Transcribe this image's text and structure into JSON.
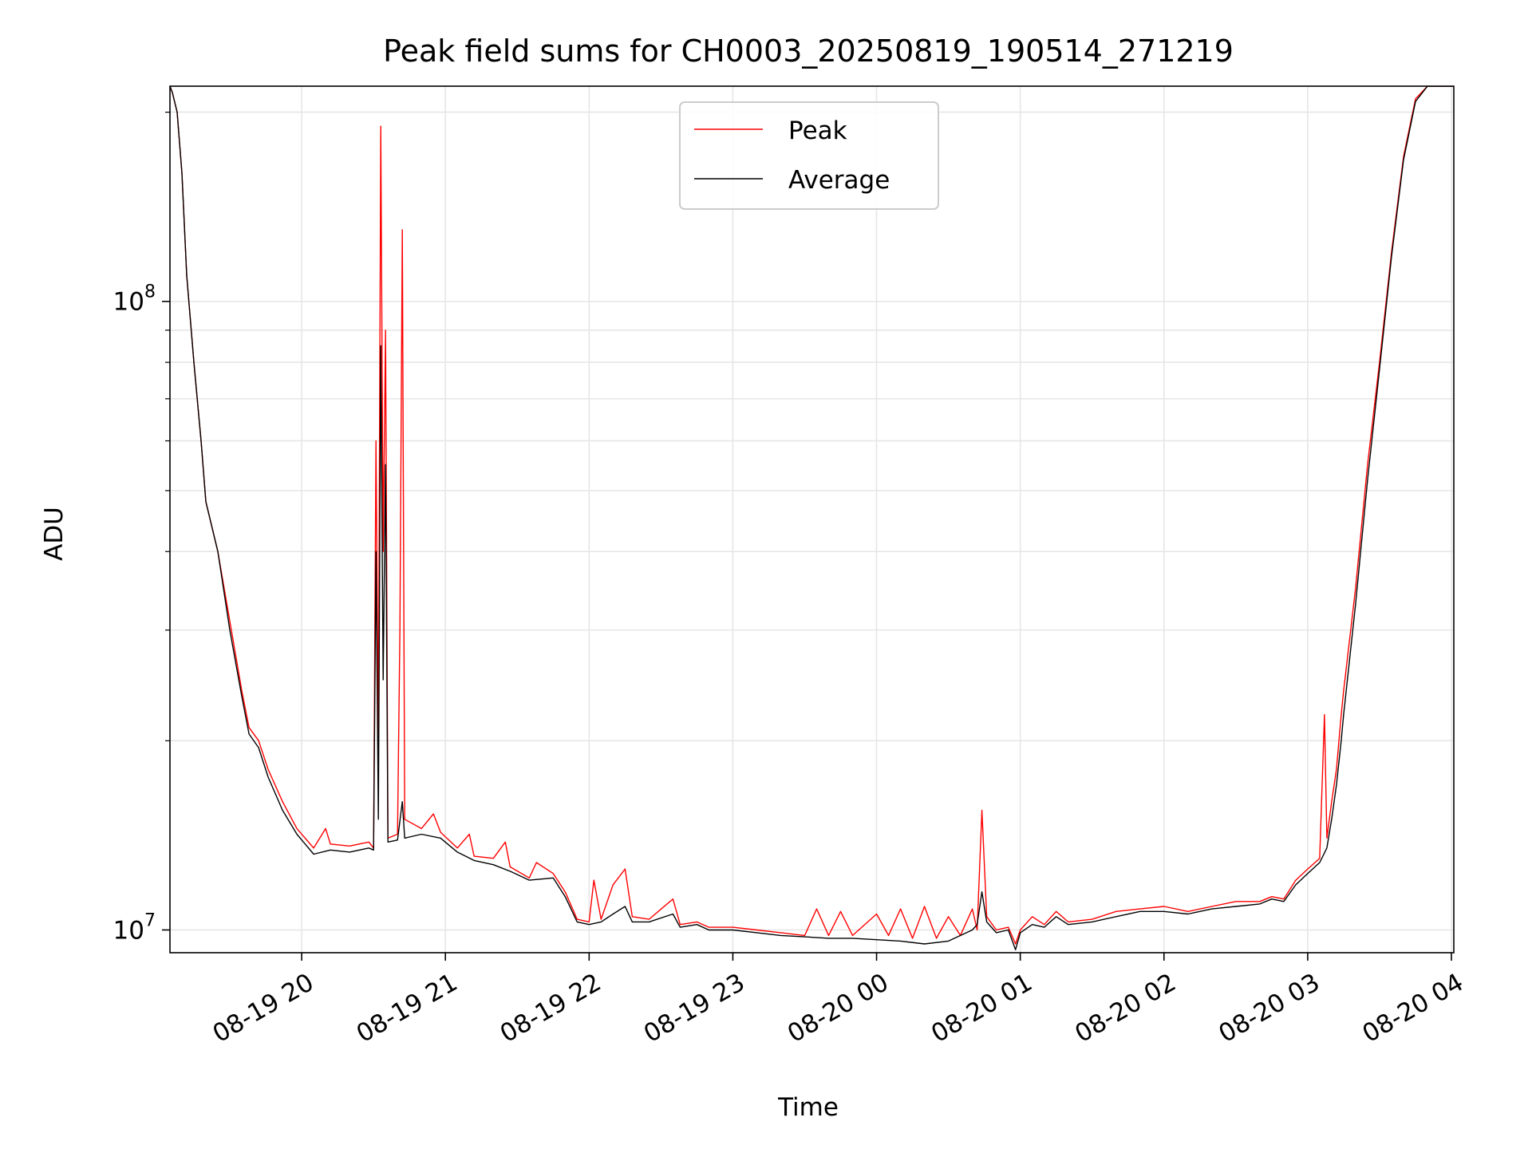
{
  "chart_data": {
    "type": "line",
    "title": "Peak field sums for CH0003_20250819_190514_271219",
    "xlabel": "Time",
    "ylabel": "ADU",
    "yscale": "log",
    "ylim": [
      9200000,
      220000000
    ],
    "xlim": [
      "08-19 19:05",
      "08-20 04:01"
    ],
    "xticks": [
      "08-19 20",
      "08-19 21",
      "08-19 22",
      "08-19 23",
      "08-20 00",
      "08-20 01",
      "08-20 02",
      "08-20 03",
      "08-20 04"
    ],
    "yticks": [
      {
        "value": 10000000,
        "base": "10",
        "exp": "7"
      },
      {
        "value": 100000000,
        "base": "10",
        "exp": "8"
      }
    ],
    "grid": true,
    "legend_position": "top-center",
    "series": [
      {
        "name": "Peak",
        "color": "#ff0000",
        "points": [
          [
            "08-19 19:05",
            220000000
          ],
          [
            "08-19 19:06",
            215000000
          ],
          [
            "08-19 19:08",
            200000000
          ],
          [
            "08-19 19:10",
            160000000
          ],
          [
            "08-19 19:12",
            110000000
          ],
          [
            "08-19 19:15",
            80000000
          ],
          [
            "08-19 19:18",
            60000000
          ],
          [
            "08-19 19:20",
            48000000
          ],
          [
            "08-19 19:25",
            40000000
          ],
          [
            "08-19 19:30",
            31000000
          ],
          [
            "08-19 19:35",
            24000000
          ],
          [
            "08-19 19:38",
            21000000
          ],
          [
            "08-19 19:42",
            20000000
          ],
          [
            "08-19 19:46",
            18000000
          ],
          [
            "08-19 19:52",
            16000000
          ],
          [
            "08-19 19:58",
            14500000
          ],
          [
            "08-19 20:05",
            13500000
          ],
          [
            "08-19 20:10",
            14500000
          ],
          [
            "08-19 20:12",
            13700000
          ],
          [
            "08-19 20:20",
            13600000
          ],
          [
            "08-19 20:28",
            13800000
          ],
          [
            "08-19 20:30",
            13500000
          ],
          [
            "08-19 20:31",
            60000000
          ],
          [
            "08-19 20:32",
            20000000
          ],
          [
            "08-19 20:33",
            190000000
          ],
          [
            "08-19 20:34",
            40000000
          ],
          [
            "08-19 20:35",
            90000000
          ],
          [
            "08-19 20:36",
            14000000
          ],
          [
            "08-19 20:40",
            14200000
          ],
          [
            "08-19 20:41",
            30000000
          ],
          [
            "08-19 20:42",
            130000000
          ],
          [
            "08-19 20:43",
            15000000
          ],
          [
            "08-19 20:50",
            14500000
          ],
          [
            "08-19 20:55",
            15300000
          ],
          [
            "08-19 20:58",
            14300000
          ],
          [
            "08-19 21:05",
            13500000
          ],
          [
            "08-19 21:10",
            14200000
          ],
          [
            "08-19 21:12",
            13100000
          ],
          [
            "08-19 21:20",
            13000000
          ],
          [
            "08-19 21:25",
            13800000
          ],
          [
            "08-19 21:27",
            12600000
          ],
          [
            "08-19 21:35",
            12100000
          ],
          [
            "08-19 21:38",
            12800000
          ],
          [
            "08-19 21:45",
            12300000
          ],
          [
            "08-19 21:50",
            11500000
          ],
          [
            "08-19 21:55",
            10400000
          ],
          [
            "08-19 22:00",
            10300000
          ],
          [
            "08-19 22:02",
            12000000
          ],
          [
            "08-19 22:05",
            10400000
          ],
          [
            "08-19 22:10",
            11800000
          ],
          [
            "08-19 22:15",
            12500000
          ],
          [
            "08-19 22:18",
            10500000
          ],
          [
            "08-19 22:25",
            10400000
          ],
          [
            "08-19 22:35",
            11200000
          ],
          [
            "08-19 22:38",
            10200000
          ],
          [
            "08-19 22:45",
            10300000
          ],
          [
            "08-19 22:50",
            10100000
          ],
          [
            "08-19 23:00",
            10100000
          ],
          [
            "08-19 23:10",
            10000000
          ],
          [
            "08-19 23:20",
            9900000
          ],
          [
            "08-19 23:30",
            9800000
          ],
          [
            "08-19 23:35",
            10800000
          ],
          [
            "08-19 23:40",
            9800000
          ],
          [
            "08-19 23:45",
            10700000
          ],
          [
            "08-19 23:50",
            9800000
          ],
          [
            "08-20 00:00",
            10600000
          ],
          [
            "08-20 00:05",
            9800000
          ],
          [
            "08-20 00:10",
            10800000
          ],
          [
            "08-20 00:15",
            9700000
          ],
          [
            "08-20 00:20",
            10900000
          ],
          [
            "08-20 00:25",
            9700000
          ],
          [
            "08-20 00:30",
            10500000
          ],
          [
            "08-20 00:35",
            9800000
          ],
          [
            "08-20 00:40",
            10800000
          ],
          [
            "08-20 00:42",
            10000000
          ],
          [
            "08-20 00:44",
            15500000
          ],
          [
            "08-20 00:46",
            10500000
          ],
          [
            "08-20 00:50",
            10000000
          ],
          [
            "08-20 00:55",
            10100000
          ],
          [
            "08-20 00:58",
            9500000
          ],
          [
            "08-20 01:00",
            10000000
          ],
          [
            "08-20 01:05",
            10500000
          ],
          [
            "08-20 01:10",
            10200000
          ],
          [
            "08-20 01:15",
            10700000
          ],
          [
            "08-20 01:20",
            10300000
          ],
          [
            "08-20 01:30",
            10400000
          ],
          [
            "08-20 01:40",
            10700000
          ],
          [
            "08-20 01:50",
            10800000
          ],
          [
            "08-20 02:00",
            10900000
          ],
          [
            "08-20 02:10",
            10700000
          ],
          [
            "08-20 02:20",
            10900000
          ],
          [
            "08-20 02:30",
            11100000
          ],
          [
            "08-20 02:40",
            11100000
          ],
          [
            "08-20 02:45",
            11300000
          ],
          [
            "08-20 02:50",
            11200000
          ],
          [
            "08-20 02:55",
            12000000
          ],
          [
            "08-20 03:00",
            12500000
          ],
          [
            "08-20 03:05",
            13000000
          ],
          [
            "08-20 03:07",
            22000000
          ],
          [
            "08-20 03:08",
            14000000
          ],
          [
            "08-20 03:10",
            16000000
          ],
          [
            "08-20 03:12",
            18000000
          ],
          [
            "08-20 03:14",
            22000000
          ],
          [
            "08-20 03:15",
            24000000
          ],
          [
            "08-20 03:20",
            35000000
          ],
          [
            "08-20 03:25",
            55000000
          ],
          [
            "08-20 03:30",
            80000000
          ],
          [
            "08-20 03:35",
            120000000
          ],
          [
            "08-20 03:40",
            170000000
          ],
          [
            "08-20 03:45",
            210000000
          ],
          [
            "08-20 03:50",
            220000000
          ],
          [
            "08-20 04:01",
            220000000
          ]
        ]
      },
      {
        "name": "Average",
        "color": "#000000",
        "points": [
          [
            "08-19 19:05",
            220000000
          ],
          [
            "08-19 19:06",
            215000000
          ],
          [
            "08-19 19:08",
            200000000
          ],
          [
            "08-19 19:10",
            160000000
          ],
          [
            "08-19 19:12",
            110000000
          ],
          [
            "08-19 19:15",
            80000000
          ],
          [
            "08-19 19:18",
            60000000
          ],
          [
            "08-19 19:20",
            48000000
          ],
          [
            "08-19 19:25",
            40000000
          ],
          [
            "08-19 19:30",
            30000000
          ],
          [
            "08-19 19:35",
            23500000
          ],
          [
            "08-19 19:38",
            20500000
          ],
          [
            "08-19 19:42",
            19500000
          ],
          [
            "08-19 19:46",
            17500000
          ],
          [
            "08-19 19:52",
            15500000
          ],
          [
            "08-19 19:58",
            14200000
          ],
          [
            "08-19 20:05",
            13200000
          ],
          [
            "08-19 20:12",
            13400000
          ],
          [
            "08-19 20:20",
            13300000
          ],
          [
            "08-19 20:28",
            13500000
          ],
          [
            "08-19 20:30",
            13400000
          ],
          [
            "08-19 20:31",
            40000000
          ],
          [
            "08-19 20:32",
            15000000
          ],
          [
            "08-19 20:33",
            85000000
          ],
          [
            "08-19 20:34",
            25000000
          ],
          [
            "08-19 20:35",
            55000000
          ],
          [
            "08-19 20:36",
            13800000
          ],
          [
            "08-19 20:40",
            13900000
          ],
          [
            "08-19 20:42",
            16000000
          ],
          [
            "08-19 20:43",
            14000000
          ],
          [
            "08-19 20:50",
            14200000
          ],
          [
            "08-19 20:58",
            14000000
          ],
          [
            "08-19 21:05",
            13300000
          ],
          [
            "08-19 21:12",
            12900000
          ],
          [
            "08-19 21:20",
            12700000
          ],
          [
            "08-19 21:27",
            12400000
          ],
          [
            "08-19 21:35",
            12000000
          ],
          [
            "08-19 21:45",
            12100000
          ],
          [
            "08-19 21:50",
            11300000
          ],
          [
            "08-19 21:55",
            10300000
          ],
          [
            "08-19 22:00",
            10200000
          ],
          [
            "08-19 22:05",
            10300000
          ],
          [
            "08-19 22:10",
            10600000
          ],
          [
            "08-19 22:15",
            10900000
          ],
          [
            "08-19 22:18",
            10300000
          ],
          [
            "08-19 22:25",
            10300000
          ],
          [
            "08-19 22:35",
            10600000
          ],
          [
            "08-19 22:38",
            10100000
          ],
          [
            "08-19 22:45",
            10200000
          ],
          [
            "08-19 22:50",
            10000000
          ],
          [
            "08-19 23:00",
            10000000
          ],
          [
            "08-19 23:10",
            9900000
          ],
          [
            "08-19 23:20",
            9800000
          ],
          [
            "08-19 23:30",
            9750000
          ],
          [
            "08-19 23:40",
            9700000
          ],
          [
            "08-19 23:50",
            9700000
          ],
          [
            "08-20 00:00",
            9650000
          ],
          [
            "08-20 00:10",
            9600000
          ],
          [
            "08-20 00:20",
            9500000
          ],
          [
            "08-20 00:30",
            9600000
          ],
          [
            "08-20 00:40",
            10000000
          ],
          [
            "08-20 00:42",
            10200000
          ],
          [
            "08-20 00:44",
            11500000
          ],
          [
            "08-20 00:46",
            10300000
          ],
          [
            "08-20 00:50",
            9900000
          ],
          [
            "08-20 00:55",
            10000000
          ],
          [
            "08-20 00:58",
            9300000
          ],
          [
            "08-20 01:00",
            9900000
          ],
          [
            "08-20 01:05",
            10200000
          ],
          [
            "08-20 01:10",
            10100000
          ],
          [
            "08-20 01:15",
            10500000
          ],
          [
            "08-20 01:20",
            10200000
          ],
          [
            "08-20 01:30",
            10300000
          ],
          [
            "08-20 01:40",
            10500000
          ],
          [
            "08-20 01:50",
            10700000
          ],
          [
            "08-20 02:00",
            10700000
          ],
          [
            "08-20 02:10",
            10600000
          ],
          [
            "08-20 02:20",
            10800000
          ],
          [
            "08-20 02:30",
            10900000
          ],
          [
            "08-20 02:40",
            11000000
          ],
          [
            "08-20 02:45",
            11200000
          ],
          [
            "08-20 02:50",
            11100000
          ],
          [
            "08-20 02:55",
            11800000
          ],
          [
            "08-20 03:00",
            12300000
          ],
          [
            "08-20 03:05",
            12800000
          ],
          [
            "08-20 03:08",
            13500000
          ],
          [
            "08-20 03:10",
            15000000
          ],
          [
            "08-20 03:12",
            17000000
          ],
          [
            "08-20 03:14",
            20000000
          ],
          [
            "08-20 03:15",
            22000000
          ],
          [
            "08-20 03:20",
            33000000
          ],
          [
            "08-20 03:25",
            52000000
          ],
          [
            "08-20 03:30",
            78000000
          ],
          [
            "08-20 03:35",
            118000000
          ],
          [
            "08-20 03:40",
            168000000
          ],
          [
            "08-20 03:45",
            208000000
          ],
          [
            "08-20 03:50",
            220000000
          ],
          [
            "08-20 04:01",
            220000000
          ]
        ]
      }
    ]
  }
}
